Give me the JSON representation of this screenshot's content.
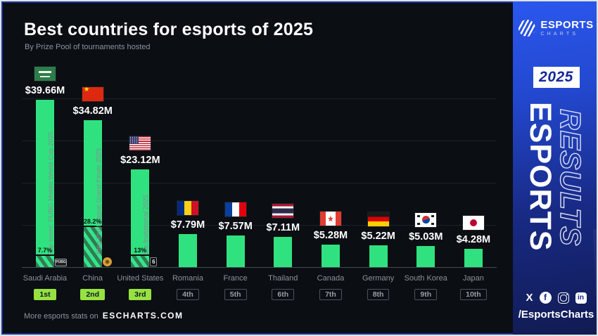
{
  "header": {
    "title": "Best countries for esports of 2025",
    "subtitle": "By Prize Pool of tournaments hosted"
  },
  "footer": {
    "prefix": "More esports stats on",
    "site": "ESCHARTS.COM"
  },
  "sidebar": {
    "logo_name": "ESPORTS",
    "logo_sub": "CHARTS",
    "year": "2025",
    "vertical_front": "ESPORTS",
    "vertical_back": "RESULTS",
    "handle": "/EsportsCharts",
    "social_icons": [
      "x-icon",
      "facebook-icon",
      "instagram-icon",
      "linkedin-icon"
    ],
    "accent_blue": "#2348cf"
  },
  "chart_data": {
    "type": "bar",
    "title": "Best countries for esports of 2025",
    "subtitle": "By Prize Pool of tournaments hosted",
    "unit": "USD millions",
    "ylabel": "Prize Pool of tournaments hosted",
    "ylim": [
      0,
      40
    ],
    "gridline_step": 10,
    "grid": true,
    "legend": false,
    "bar_color": "#30e27f",
    "rank_badge_color": "#96e23f",
    "categories": [
      "Saudi Arabia",
      "China",
      "United States",
      "Romania",
      "France",
      "Thailand",
      "Canada",
      "Germany",
      "South Korea",
      "Japan"
    ],
    "values": [
      39.66,
      34.82,
      23.12,
      7.79,
      7.57,
      7.11,
      5.28,
      5.22,
      5.03,
      4.28
    ],
    "value_labels": [
      "$39.66M",
      "$34.82M",
      "$23.12M",
      "$7.79M",
      "$7.57M",
      "$7.11M",
      "$5.28M",
      "$5.22M",
      "$5.03M",
      "$4.28M"
    ],
    "ranks": [
      "1st",
      "2nd",
      "3rd",
      "4th",
      "5th",
      "6th",
      "7th",
      "8th",
      "9th",
      "10th"
    ],
    "flags": [
      "sa",
      "cn",
      "us",
      "ro",
      "fr",
      "th",
      "ca",
      "de",
      "kr",
      "jp"
    ],
    "top_events": [
      {
        "label": "Top event: PUBG Mobile World Cup 2025",
        "share_label": "7.7%",
        "share_pct": 7.7,
        "icon": "pubg-icon",
        "icon_text": "PUBG"
      },
      {
        "label": "King Pro League Grand Finals 2025",
        "share_label": "28.2%",
        "share_pct": 28.2,
        "icon": "king-pro-league-icon",
        "icon_text": ""
      },
      {
        "label": "Six Invitational 2025",
        "share_label": "13%",
        "share_pct": 13,
        "icon": "six-invitational-icon",
        "icon_text": "6"
      },
      null,
      null,
      null,
      null,
      null,
      null,
      null
    ]
  }
}
